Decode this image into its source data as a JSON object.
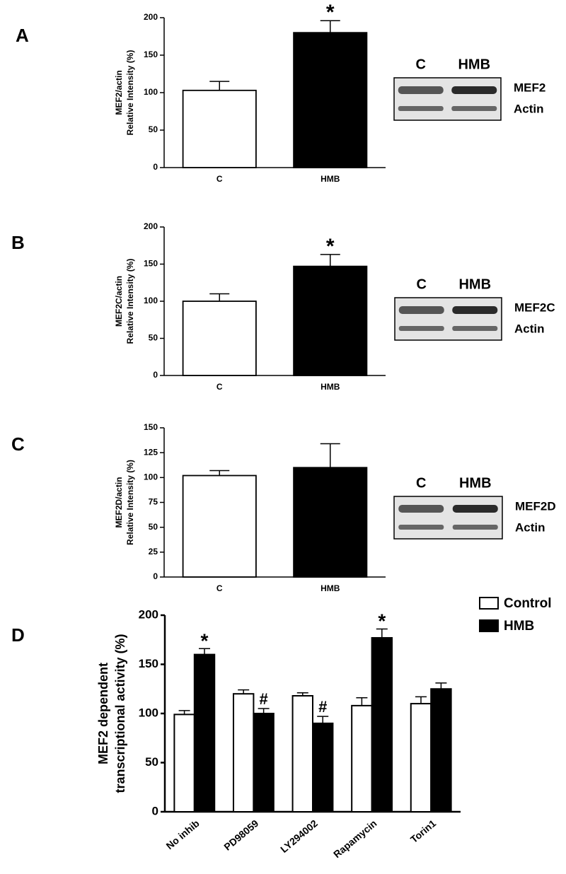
{
  "chart_data": [
    {
      "type": "bar",
      "panel": "A",
      "ylabel": "MEF2/actin",
      "ylabel2": "Relative Intensity (%)",
      "categories": [
        "C",
        "HMB"
      ],
      "values": [
        103,
        180
      ],
      "errors": [
        12,
        16
      ],
      "marks": [
        null,
        "*"
      ],
      "colors": [
        "#ffffff",
        "#000000"
      ],
      "ylim": [
        0,
        200
      ],
      "yticks": [
        0,
        50,
        100,
        150,
        200
      ],
      "blot": {
        "lanes": [
          "C",
          "HMB"
        ],
        "bands": [
          "MEF2",
          "Actin"
        ]
      }
    },
    {
      "type": "bar",
      "panel": "B",
      "ylabel": "MEF2C/actin",
      "ylabel2": "Relative Intensity (%)",
      "categories": [
        "C",
        "HMB"
      ],
      "values": [
        100,
        147
      ],
      "errors": [
        10,
        16
      ],
      "marks": [
        null,
        "*"
      ],
      "colors": [
        "#ffffff",
        "#000000"
      ],
      "ylim": [
        0,
        200
      ],
      "yticks": [
        0,
        50,
        100,
        150,
        200
      ],
      "blot": {
        "lanes": [
          "C",
          "HMB"
        ],
        "bands": [
          "MEF2C",
          "Actin"
        ]
      }
    },
    {
      "type": "bar",
      "panel": "C",
      "ylabel": "MEF2D/actin",
      "ylabel2": "Relative Intensity (%)",
      "categories": [
        "C",
        "HMB"
      ],
      "values": [
        102,
        110
      ],
      "errors": [
        5,
        24
      ],
      "colors": [
        "#ffffff",
        "#000000"
      ],
      "ylim": [
        0,
        150
      ],
      "yticks": [
        0,
        25,
        50,
        75,
        100,
        125,
        150
      ],
      "blot": {
        "lanes": [
          "C",
          "HMB"
        ],
        "bands": [
          "MEF2D",
          "Actin"
        ]
      }
    },
    {
      "type": "bar",
      "panel": "D",
      "ylabel": "MEF2 dependent",
      "ylabel2": "transcriptional activity (%)",
      "categories": [
        "No inhib",
        "PD98059",
        "LY294002",
        "Rapamycin",
        "Torin1"
      ],
      "series": [
        {
          "name": "Control",
          "color": "#ffffff",
          "values": [
            99,
            120,
            118,
            108,
            110
          ],
          "errors": [
            4,
            4,
            3,
            8,
            7
          ]
        },
        {
          "name": "HMB",
          "color": "#000000",
          "values": [
            160,
            100,
            90,
            177,
            125
          ],
          "errors": [
            6,
            5,
            7,
            9,
            6
          ],
          "marks": [
            "*",
            "#",
            "#",
            "*",
            null
          ]
        }
      ],
      "ylim": [
        0,
        200
      ],
      "yticks": [
        0,
        50,
        100,
        150,
        200
      ],
      "legend": "upper right"
    }
  ]
}
